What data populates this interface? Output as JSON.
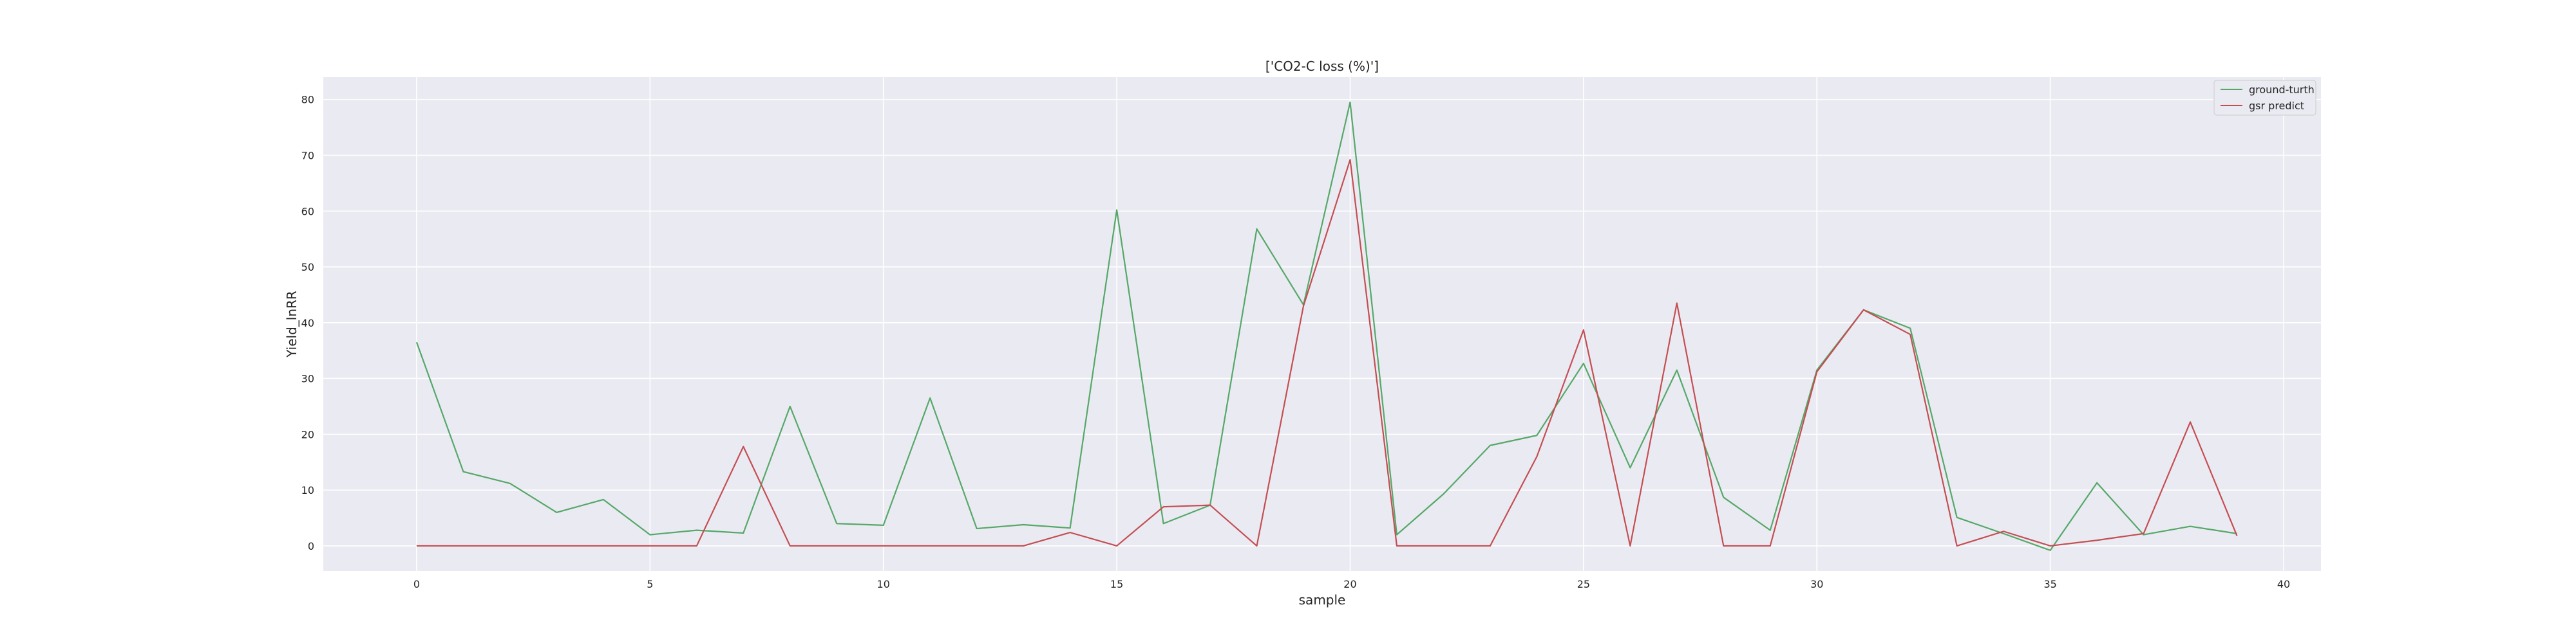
{
  "chart_data": {
    "type": "line",
    "title": "['CO2-C loss (%)']",
    "xlabel": "sample",
    "ylabel": "Yield_lnRR",
    "xlim": [
      -2,
      40.8
    ],
    "ylim": [
      -4.5,
      84
    ],
    "xticks": [
      0,
      5,
      10,
      15,
      20,
      25,
      30,
      35,
      40
    ],
    "yticks": [
      0,
      10,
      20,
      30,
      40,
      50,
      60,
      70,
      80
    ],
    "xtick_labels": [
      "0",
      "5",
      "10",
      "15",
      "20",
      "25",
      "30",
      "35",
      "40"
    ],
    "ytick_labels": [
      "0",
      "10",
      "20",
      "30",
      "40",
      "50",
      "60",
      "70",
      "80"
    ],
    "grid": true,
    "legend_position": "top-right",
    "x": [
      0,
      1,
      2,
      3,
      4,
      5,
      6,
      7,
      8,
      9,
      10,
      11,
      12,
      13,
      14,
      15,
      16,
      17,
      18,
      19,
      20,
      21,
      22,
      23,
      24,
      25,
      26,
      27,
      28,
      29,
      30,
      31,
      32,
      33,
      34,
      35,
      36,
      37,
      38,
      39
    ],
    "series": [
      {
        "name": "ground-turth",
        "color": "#55a868",
        "values": [
          36.5,
          13.3,
          11.2,
          6.0,
          8.3,
          2.0,
          2.8,
          2.3,
          25.0,
          4.0,
          3.7,
          26.5,
          3.1,
          3.8,
          3.2,
          60.2,
          4.0,
          7.3,
          56.8,
          43.2,
          79.5,
          2.0,
          9.3,
          18.0,
          19.8,
          32.7,
          14.0,
          31.5,
          8.7,
          2.8,
          31.5,
          42.3,
          39.0,
          5.1,
          2.2,
          -0.8,
          11.3,
          2.0,
          3.5,
          2.2
        ]
      },
      {
        "name": "gsr predict",
        "color": "#c44e52",
        "values": [
          0,
          0,
          0,
          0,
          0,
          0,
          0,
          17.8,
          0,
          0,
          0,
          0,
          0,
          0,
          2.4,
          0,
          7.0,
          7.3,
          0,
          43.0,
          69.2,
          0,
          0,
          0,
          16.0,
          38.7,
          0,
          43.5,
          0,
          0,
          31.2,
          42.3,
          37.9,
          0,
          2.6,
          0,
          1.0,
          2.2,
          22.2,
          1.8
        ]
      }
    ]
  }
}
